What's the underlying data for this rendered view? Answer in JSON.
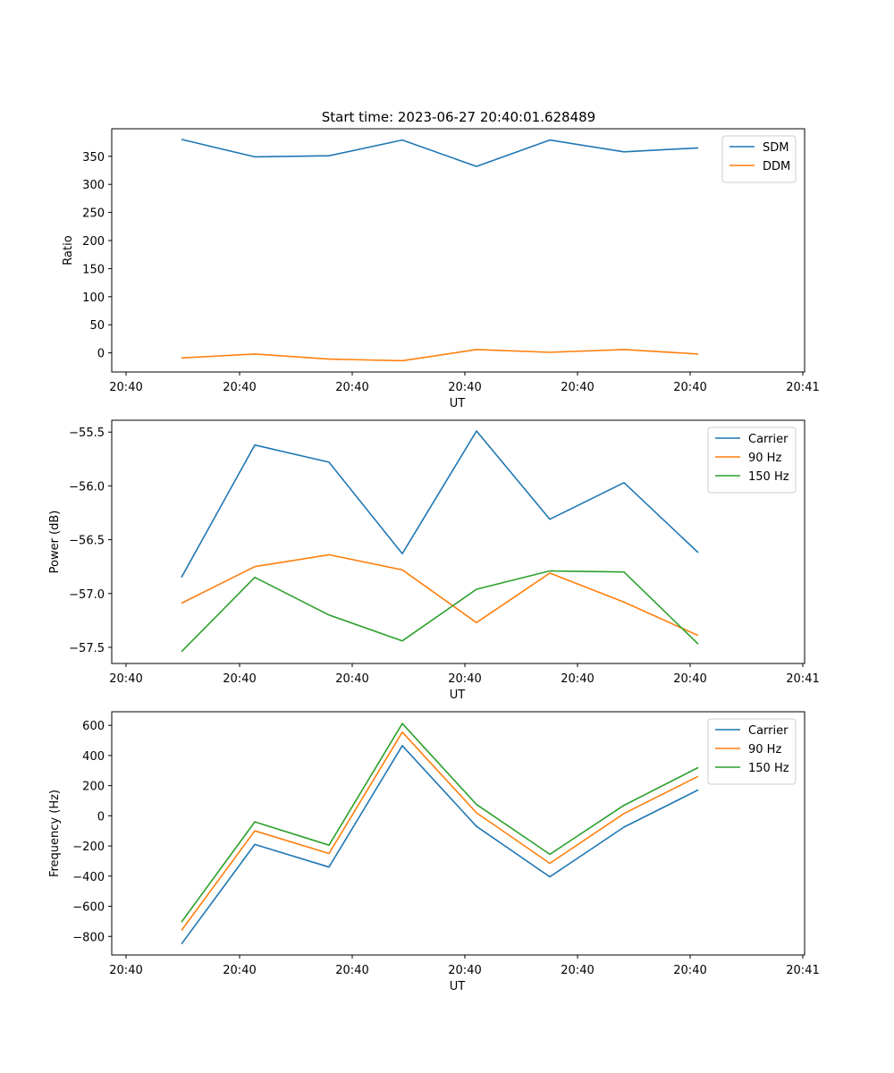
{
  "figure": {
    "title": "Start time: 2023-06-27 20:40:01.628489"
  },
  "chart_data": [
    {
      "type": "line",
      "title": "Start time: 2023-06-27 20:40:01.628489",
      "xlabel": "UT",
      "ylabel": "Ratio",
      "x_tick_labels": [
        "20:40",
        "20:40",
        "20:40",
        "20:40",
        "20:40",
        "20:40",
        "20:41"
      ],
      "yticks": [
        0,
        50,
        100,
        150,
        200,
        250,
        300,
        350
      ],
      "ylim": [
        -34,
        399
      ],
      "grid": false,
      "legend": "top-right",
      "series": [
        {
          "name": "SDM",
          "color": "#1f77b4",
          "values": [
            380,
            349,
            351,
            379,
            332,
            379,
            358,
            365
          ]
        },
        {
          "name": "DDM",
          "color": "#ff7f0e",
          "values": [
            -9,
            -2,
            -11,
            -14,
            6,
            1,
            6,
            -2
          ]
        }
      ]
    },
    {
      "type": "line",
      "title": "",
      "xlabel": "UT",
      "ylabel": "Power (dB)",
      "x_tick_labels": [
        "20:40",
        "20:40",
        "20:40",
        "20:40",
        "20:40",
        "20:40",
        "20:41"
      ],
      "yticks": [
        -55.5,
        -56.0,
        -56.5,
        -57.0,
        -57.5
      ],
      "ytick_labels": [
        "−55.5",
        "−56.0",
        "−56.5",
        "−57.0",
        "−57.5"
      ],
      "ylim": [
        -57.65,
        -55.39
      ],
      "grid": false,
      "legend": "top-right",
      "series": [
        {
          "name": "Carrier",
          "color": "#1f77b4",
          "values": [
            -56.85,
            -55.62,
            -55.78,
            -56.63,
            -55.49,
            -56.31,
            -55.97,
            -56.62
          ]
        },
        {
          "name": "90 Hz",
          "color": "#ff7f0e",
          "values": [
            -57.09,
            -56.75,
            -56.64,
            -56.78,
            -57.27,
            -56.81,
            -57.08,
            -57.39
          ]
        },
        {
          "name": "150 Hz",
          "color": "#2ca02c",
          "values": [
            -57.54,
            -56.85,
            -57.2,
            -57.44,
            -56.96,
            -56.79,
            -56.8,
            -57.47
          ]
        }
      ]
    },
    {
      "type": "line",
      "title": "",
      "xlabel": "UT",
      "ylabel": "Frequency (Hz)",
      "x_tick_labels": [
        "20:40",
        "20:40",
        "20:40",
        "20:40",
        "20:40",
        "20:40",
        "20:41"
      ],
      "yticks": [
        600,
        400,
        200,
        0,
        -200,
        -400,
        -600,
        -800
      ],
      "ytick_labels": [
        "600",
        "400",
        "200",
        "0",
        "−200",
        "−400",
        "−600",
        "−800"
      ],
      "ylim": [
        -923,
        690
      ],
      "grid": false,
      "legend": "top-right",
      "series": [
        {
          "name": "Carrier",
          "color": "#1f77b4",
          "values": [
            -850,
            -190,
            -340,
            465,
            -70,
            -405,
            -75,
            172
          ]
        },
        {
          "name": "90 Hz",
          "color": "#ff7f0e",
          "values": [
            -760,
            -100,
            -250,
            555,
            20,
            -315,
            15,
            262
          ]
        },
        {
          "name": "150 Hz",
          "color": "#2ca02c",
          "values": [
            -705,
            -40,
            -195,
            612,
            75,
            -255,
            70,
            320
          ]
        }
      ]
    }
  ]
}
